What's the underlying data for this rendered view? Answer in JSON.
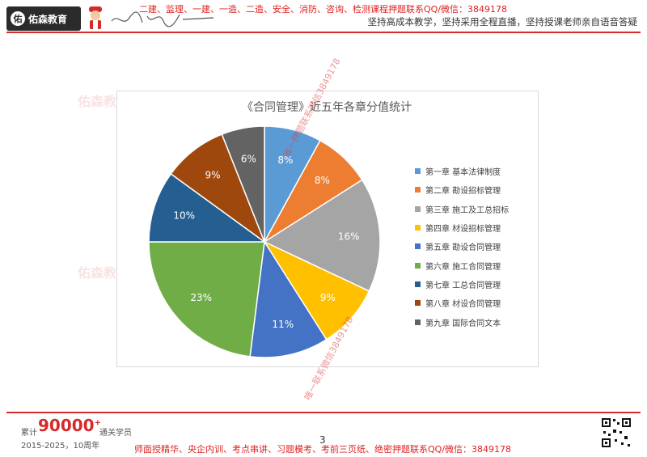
{
  "header": {
    "logo_text": "佑森教育",
    "top_line": "二建、监理、一建、一造、二造、安全、消防、咨询、检测课程押题联系QQ/微信：3849178",
    "sub_line": "坚持高成本教学，坚持采用全程直播，坚持授课老师亲自语音答疑"
  },
  "watermarks": {
    "logo_text": "佑森教育",
    "diag_1": "唯一押题联系微信3849178",
    "diag_2": "唯一联系微信3849178"
  },
  "chart_data": {
    "type": "pie",
    "title": "《合同管理》近五年各章分值统计",
    "legend_position": "right",
    "slices": [
      {
        "name": "第一章  基本法律制度",
        "value": 8,
        "label": "8%",
        "color": "#5B9BD5"
      },
      {
        "name": "第二章  勘设招标管理",
        "value": 8,
        "label": "8%",
        "color": "#ED7D31"
      },
      {
        "name": "第三章  施工及工总招标",
        "value": 16,
        "label": "16%",
        "color": "#A5A5A5"
      },
      {
        "name": "第四章  材设招标管理",
        "value": 9,
        "label": "9%",
        "color": "#FFC000"
      },
      {
        "name": "第五章  勘设合同管理",
        "value": 11,
        "label": "11%",
        "color": "#4472C4"
      },
      {
        "name": "第六章  施工合同管理",
        "value": 23,
        "label": "23%",
        "color": "#70AD47"
      },
      {
        "name": "第七章  工总合同管理",
        "value": 10,
        "label": "10%",
        "color": "#255E91"
      },
      {
        "name": "第八章  材设合同管理",
        "value": 9,
        "label": "9%",
        "color": "#9E480E"
      },
      {
        "name": "第九章  国际合同文本",
        "value": 6,
        "label": "6%",
        "color": "#636363"
      }
    ]
  },
  "footer": {
    "count_prefix": "累计",
    "count": "90000",
    "count_plus": "+",
    "count_suffix": "通关学员",
    "years": "2015-2025，10周年",
    "page_number": "3",
    "line": "师面授精华、央企内训、考点串讲、习题模考、考前三页纸、绝密押题联系QQ/微信：3849178"
  }
}
